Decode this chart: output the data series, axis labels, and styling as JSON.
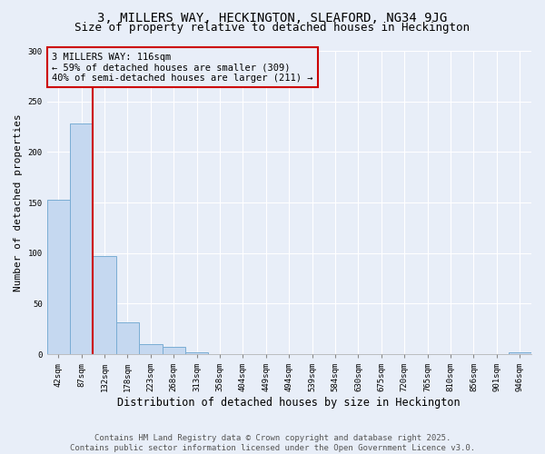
{
  "title_line1": "3, MILLERS WAY, HECKINGTON, SLEAFORD, NG34 9JG",
  "title_line2": "Size of property relative to detached houses in Heckington",
  "xlabel": "Distribution of detached houses by size in Heckington",
  "ylabel": "Number of detached properties",
  "bar_labels": [
    "42sqm",
    "87sqm",
    "132sqm",
    "178sqm",
    "223sqm",
    "268sqm",
    "313sqm",
    "358sqm",
    "404sqm",
    "449sqm",
    "494sqm",
    "539sqm",
    "584sqm",
    "630sqm",
    "675sqm",
    "720sqm",
    "765sqm",
    "810sqm",
    "856sqm",
    "901sqm",
    "946sqm"
  ],
  "bar_values": [
    153,
    228,
    97,
    32,
    10,
    7,
    2,
    0,
    0,
    0,
    0,
    0,
    0,
    0,
    0,
    0,
    0,
    0,
    0,
    0,
    2
  ],
  "bar_color": "#c5d8f0",
  "bar_edge_color": "#7aadd4",
  "annotation_line1": "3 MILLERS WAY: 116sqm",
  "annotation_line2": "← 59% of detached houses are smaller (309)",
  "annotation_line3": "40% of semi-detached houses are larger (211) →",
  "vline_color": "#cc0000",
  "annotation_box_color": "#cc0000",
  "ylim": [
    0,
    300
  ],
  "yticks": [
    0,
    50,
    100,
    150,
    200,
    250,
    300
  ],
  "footer_line1": "Contains HM Land Registry data © Crown copyright and database right 2025.",
  "footer_line2": "Contains public sector information licensed under the Open Government Licence v3.0.",
  "bg_color": "#e8eef8",
  "grid_color": "#ffffff",
  "title_fontsize": 10,
  "subtitle_fontsize": 9,
  "xlabel_fontsize": 8.5,
  "ylabel_fontsize": 8,
  "tick_fontsize": 6.5,
  "footer_fontsize": 6.5,
  "annotation_fontsize": 7.5
}
